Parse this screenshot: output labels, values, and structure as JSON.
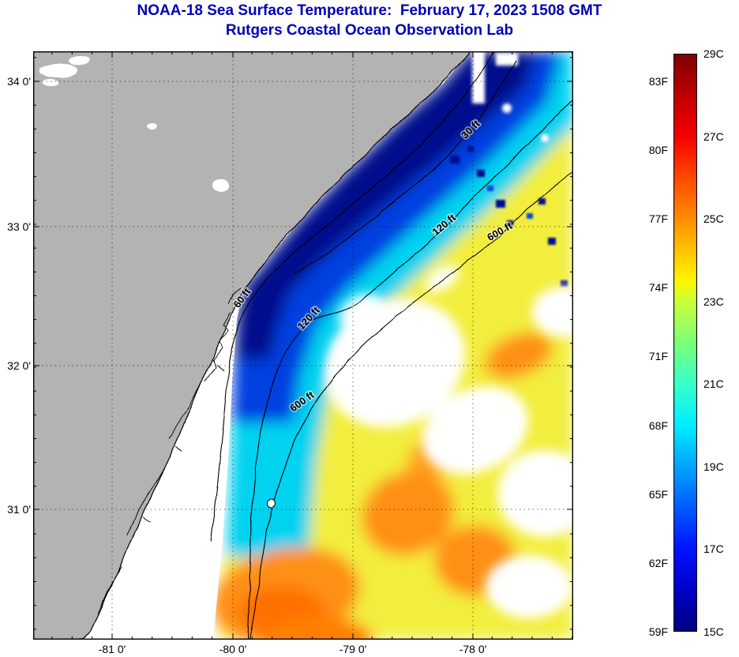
{
  "header": {
    "title": "NOAA-18 Sea Surface Temperature:  February 17, 2023 1508 GMT",
    "subtitle": "Rutgers Coastal Ocean Observation Lab"
  },
  "axes": {
    "y_tick_labels": [
      "34 0'",
      "33 0'",
      "32 0'",
      "31 0'"
    ],
    "x_tick_labels": [
      "-81 0'",
      "-80 0'",
      "-79 0'",
      "-78 0'"
    ]
  },
  "contours": {
    "labels": [
      "30 ft",
      "120 ft",
      "600 ft",
      "60 ft",
      "120 ft",
      "600 ft"
    ],
    "depths_ft": [
      30,
      60,
      120,
      600
    ]
  },
  "colorbar": {
    "fahrenheit_labels": [
      "83F",
      "80F",
      "77F",
      "74F",
      "71F",
      "68F",
      "65F",
      "62F",
      "59F"
    ],
    "celsius_labels": [
      "29C",
      "27C",
      "25C",
      "23C",
      "21C",
      "19C",
      "17C",
      "15C"
    ],
    "gradient_stops": [
      "#7f0000",
      "#bf0000",
      "#f50000",
      "#ff4900",
      "#ff8d00",
      "#ffd300",
      "#fff500",
      "#c8ff37",
      "#7cff79",
      "#37ffc8",
      "#00edff",
      "#00a4ff",
      "#005bff",
      "#0012ff",
      "#0000c8",
      "#000083"
    ]
  },
  "colors": {
    "title_text": "#0000b8",
    "land": "#b3b3b3",
    "cold_water": "#000a8c",
    "warm_water": "#ff9015",
    "cloud_no_data": "#ffffff"
  },
  "chart_data": {
    "type": "heatmap",
    "title": "NOAA-18 Sea Surface Temperature: February 17, 2023 1508 GMT",
    "subtitle": "Rutgers Coastal Ocean Observation Lab",
    "x_ticks": [
      "-81 0'",
      "-80 0'",
      "-79 0'",
      "-78 0'"
    ],
    "y_ticks": [
      "34 0'",
      "31 0'",
      "32 0'",
      "33 0'"
    ],
    "temperature_scale": {
      "celsius_range": [
        15,
        29
      ],
      "fahrenheit_range": [
        59,
        83
      ],
      "colormap": "jet (dark blue cold to dark red warm)"
    },
    "depth_contour_labels_ft": [
      30,
      60,
      120,
      600
    ],
    "features": [
      "cold nearshore band 15-18C hugging coastline from Cape Fear to Charleston",
      "warm offshore Gulf Stream water 23-26C to the south and east beyond the 600 ft isobath",
      "gray land mass occupying the upper-left of the map",
      "white regions of cloud cover / no data over the shelf"
    ]
  }
}
